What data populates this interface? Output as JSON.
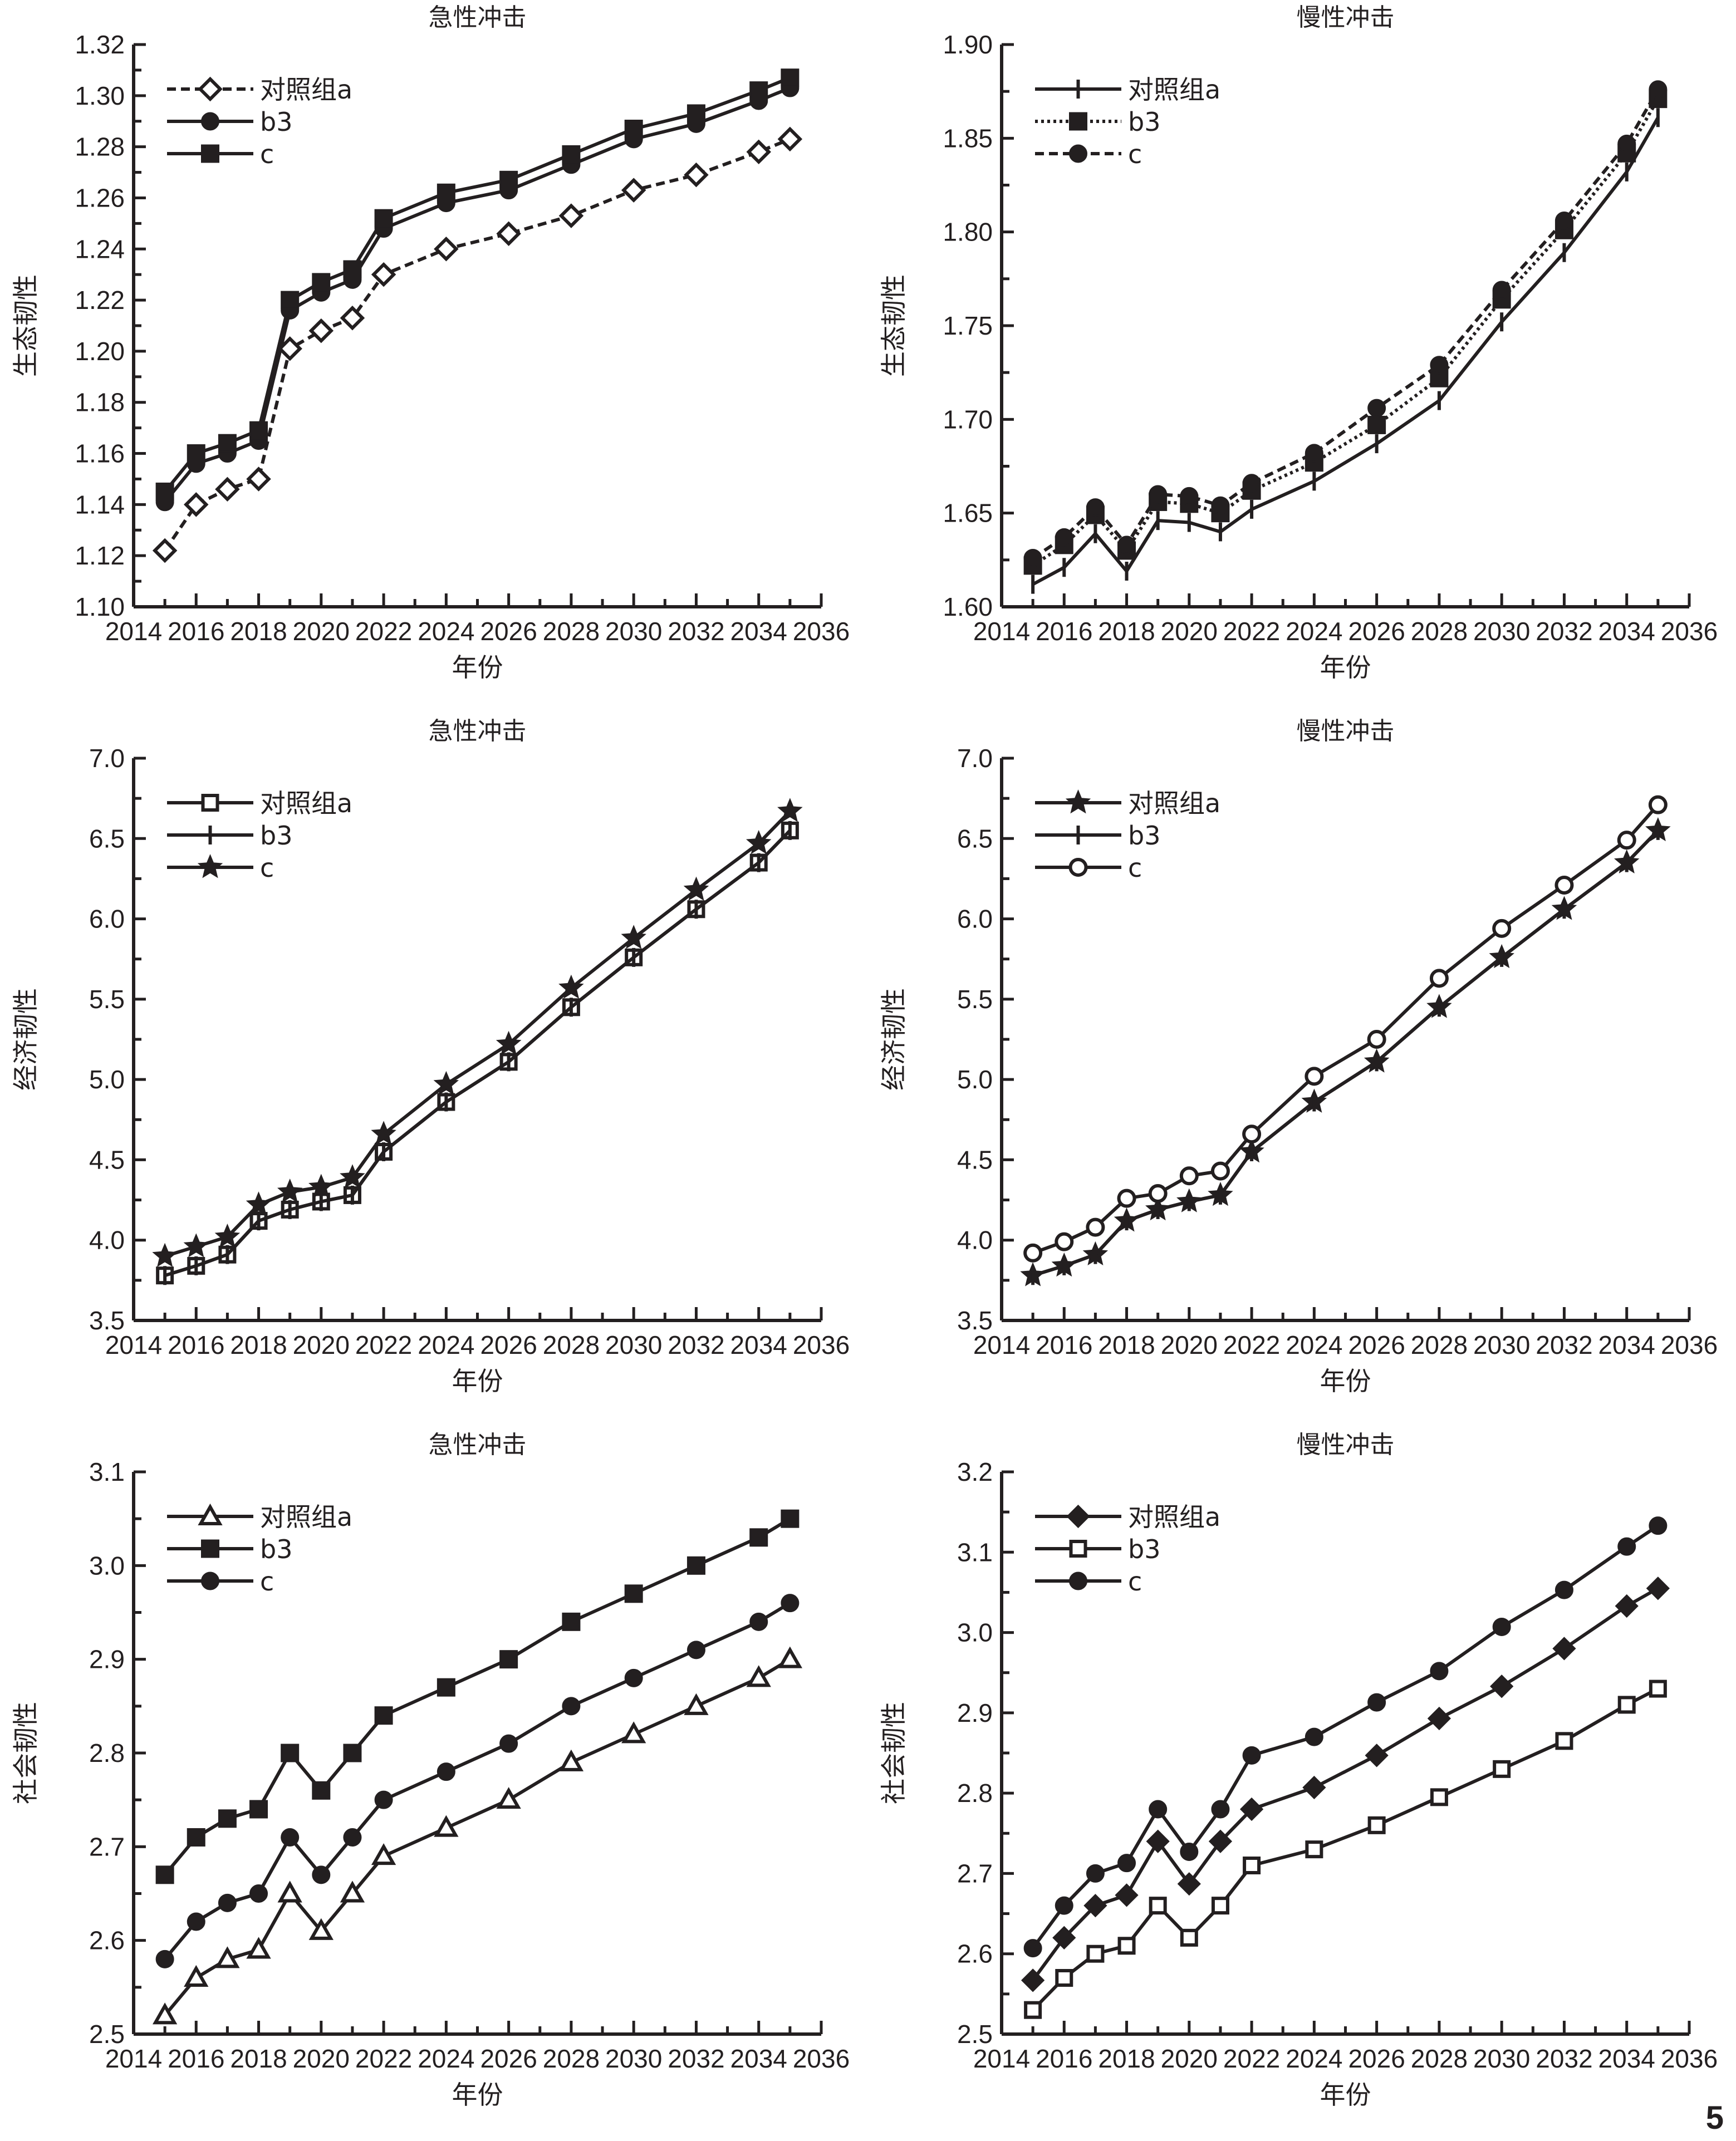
{
  "page_number": "5",
  "chart_data": [
    {
      "id": "eco-acute",
      "type": "line",
      "title": "急性冲击",
      "xlabel": "年份",
      "ylabel": "生态韧性",
      "xlim": [
        2014,
        2036
      ],
      "xticks": [
        2014,
        2016,
        2018,
        2020,
        2022,
        2024,
        2026,
        2028,
        2030,
        2032,
        2034,
        2036
      ],
      "ylim": [
        1.1,
        1.32
      ],
      "yticks": [
        1.1,
        1.12,
        1.14,
        1.16,
        1.18,
        1.2,
        1.22,
        1.24,
        1.26,
        1.28,
        1.3,
        1.32
      ],
      "ytick_decimals": 2,
      "legend_position": "top-left",
      "grid": false,
      "x": [
        2015,
        2016,
        2017,
        2018,
        2019,
        2020,
        2021,
        2022,
        2024,
        2026,
        2028,
        2030,
        2032,
        2034,
        2035
      ],
      "series": [
        {
          "name": "对照组a",
          "marker": "diamond-open",
          "line": "dashed",
          "values": [
            1.122,
            1.14,
            1.146,
            1.15,
            1.201,
            1.208,
            1.213,
            1.23,
            1.24,
            1.246,
            1.253,
            1.263,
            1.269,
            1.278,
            1.283
          ]
        },
        {
          "name": "b3",
          "marker": "circle-filled",
          "line": "solid",
          "values": [
            1.141,
            1.156,
            1.16,
            1.165,
            1.216,
            1.223,
            1.228,
            1.248,
            1.258,
            1.263,
            1.273,
            1.283,
            1.289,
            1.298,
            1.303
          ]
        },
        {
          "name": "c",
          "marker": "square-filled",
          "line": "solid",
          "values": [
            1.145,
            1.16,
            1.164,
            1.169,
            1.22,
            1.227,
            1.232,
            1.252,
            1.262,
            1.267,
            1.277,
            1.287,
            1.293,
            1.302,
            1.307
          ]
        }
      ]
    },
    {
      "id": "eco-chronic",
      "type": "line",
      "title": "慢性冲击",
      "xlabel": "年份",
      "ylabel": "生态韧性",
      "xlim": [
        2014,
        2036
      ],
      "xticks": [
        2014,
        2016,
        2018,
        2020,
        2022,
        2024,
        2026,
        2028,
        2030,
        2032,
        2034,
        2036
      ],
      "ylim": [
        1.6,
        1.9
      ],
      "yticks": [
        1.6,
        1.65,
        1.7,
        1.75,
        1.8,
        1.85,
        1.9
      ],
      "ytick_decimals": 2,
      "legend_position": "top-left",
      "grid": false,
      "x": [
        2015,
        2016,
        2017,
        2018,
        2019,
        2020,
        2021,
        2022,
        2024,
        2026,
        2028,
        2030,
        2032,
        2034,
        2035
      ],
      "series": [
        {
          "name": "对照组a",
          "marker": "plus",
          "line": "solid",
          "values": [
            1.612,
            1.621,
            1.639,
            1.619,
            1.646,
            1.645,
            1.64,
            1.652,
            1.667,
            1.687,
            1.71,
            1.752,
            1.789,
            1.832,
            1.861
          ]
        },
        {
          "name": "b3",
          "marker": "square-filled",
          "line": "dotted",
          "values": [
            1.622,
            1.633,
            1.649,
            1.63,
            1.656,
            1.655,
            1.65,
            1.662,
            1.677,
            1.697,
            1.722,
            1.764,
            1.801,
            1.842,
            1.871
          ]
        },
        {
          "name": "c",
          "marker": "circle-filled",
          "line": "dashed",
          "values": [
            1.626,
            1.637,
            1.653,
            1.633,
            1.66,
            1.659,
            1.654,
            1.666,
            1.682,
            1.706,
            1.729,
            1.769,
            1.806,
            1.847,
            1.876
          ]
        }
      ]
    },
    {
      "id": "econ-acute",
      "type": "line",
      "title": "急性冲击",
      "xlabel": "年份",
      "ylabel": "经济韧性",
      "xlim": [
        2014,
        2036
      ],
      "xticks": [
        2014,
        2016,
        2018,
        2020,
        2022,
        2024,
        2026,
        2028,
        2030,
        2032,
        2034,
        2036
      ],
      "ylim": [
        3.5,
        7.0
      ],
      "yticks": [
        3.5,
        4.0,
        4.5,
        5.0,
        5.5,
        6.0,
        6.5,
        7.0
      ],
      "ytick_decimals": 1,
      "legend_position": "top-left",
      "grid": false,
      "x": [
        2015,
        2016,
        2017,
        2018,
        2019,
        2020,
        2021,
        2022,
        2024,
        2026,
        2028,
        2030,
        2032,
        2034,
        2035
      ],
      "series": [
        {
          "name": "对照组a",
          "marker": "square-open",
          "line": "solid",
          "values": [
            3.78,
            3.84,
            3.91,
            4.12,
            4.19,
            4.24,
            4.28,
            4.55,
            4.86,
            5.11,
            5.45,
            5.76,
            6.06,
            6.35,
            6.55
          ]
        },
        {
          "name": "b3",
          "marker": "plus",
          "line": "solid",
          "values": [
            3.78,
            3.84,
            3.91,
            4.12,
            4.19,
            4.24,
            4.28,
            4.55,
            4.86,
            5.11,
            5.45,
            5.76,
            6.06,
            6.35,
            6.55
          ]
        },
        {
          "name": "c",
          "marker": "star-filled",
          "line": "solid",
          "values": [
            3.9,
            3.96,
            4.02,
            4.22,
            4.3,
            4.33,
            4.39,
            4.66,
            4.97,
            5.22,
            5.57,
            5.88,
            6.18,
            6.47,
            6.67
          ]
        }
      ]
    },
    {
      "id": "econ-chronic",
      "type": "line",
      "title": "慢性冲击",
      "xlabel": "年份",
      "ylabel": "经济韧性",
      "xlim": [
        2014,
        2036
      ],
      "xticks": [
        2014,
        2016,
        2018,
        2020,
        2022,
        2024,
        2026,
        2028,
        2030,
        2032,
        2034,
        2036
      ],
      "ylim": [
        3.5,
        7.0
      ],
      "yticks": [
        3.5,
        4.0,
        4.5,
        5.0,
        5.5,
        6.0,
        6.5,
        7.0
      ],
      "ytick_decimals": 1,
      "legend_position": "top-left",
      "grid": false,
      "x": [
        2015,
        2016,
        2017,
        2018,
        2019,
        2020,
        2021,
        2022,
        2024,
        2026,
        2028,
        2030,
        2032,
        2034,
        2035
      ],
      "series": [
        {
          "name": "对照组a",
          "marker": "star-filled",
          "line": "solid",
          "values": [
            3.78,
            3.84,
            3.91,
            4.12,
            4.19,
            4.24,
            4.28,
            4.55,
            4.86,
            5.11,
            5.45,
            5.76,
            6.06,
            6.35,
            6.55
          ]
        },
        {
          "name": "b3",
          "marker": "plus",
          "line": "solid",
          "values": [
            3.78,
            3.84,
            3.91,
            4.12,
            4.19,
            4.24,
            4.28,
            4.55,
            4.86,
            5.11,
            5.45,
            5.76,
            6.06,
            6.35,
            6.55
          ]
        },
        {
          "name": "c",
          "marker": "circle-open",
          "line": "solid",
          "values": [
            3.92,
            3.99,
            4.08,
            4.26,
            4.29,
            4.4,
            4.43,
            4.66,
            5.02,
            5.25,
            5.63,
            5.94,
            6.21,
            6.49,
            6.71
          ]
        }
      ]
    },
    {
      "id": "social-acute",
      "type": "line",
      "title": "急性冲击",
      "xlabel": "年份",
      "ylabel": "社会韧性",
      "xlim": [
        2014,
        2036
      ],
      "xticks": [
        2014,
        2016,
        2018,
        2020,
        2022,
        2024,
        2026,
        2028,
        2030,
        2032,
        2034,
        2036
      ],
      "ylim": [
        2.5,
        3.1
      ],
      "yticks": [
        2.5,
        2.6,
        2.7,
        2.8,
        2.9,
        3.0,
        3.1
      ],
      "ytick_decimals": 1,
      "legend_position": "top-left",
      "grid": false,
      "x": [
        2015,
        2016,
        2017,
        2018,
        2019,
        2020,
        2021,
        2022,
        2024,
        2026,
        2028,
        2030,
        2032,
        2034,
        2035
      ],
      "series": [
        {
          "name": "对照组a",
          "marker": "triangle-open",
          "line": "solid",
          "values": [
            2.52,
            2.56,
            2.58,
            2.59,
            2.65,
            2.61,
            2.65,
            2.69,
            2.72,
            2.75,
            2.79,
            2.82,
            2.85,
            2.88,
            2.9
          ]
        },
        {
          "name": "b3",
          "marker": "square-filled",
          "line": "solid",
          "values": [
            2.67,
            2.71,
            2.73,
            2.74,
            2.8,
            2.76,
            2.8,
            2.84,
            2.87,
            2.9,
            2.94,
            2.97,
            3.0,
            3.03,
            3.05
          ]
        },
        {
          "name": "c",
          "marker": "circle-filled",
          "line": "solid",
          "values": [
            2.58,
            2.62,
            2.64,
            2.65,
            2.71,
            2.67,
            2.71,
            2.75,
            2.78,
            2.81,
            2.85,
            2.88,
            2.91,
            2.94,
            2.96
          ]
        }
      ]
    },
    {
      "id": "social-chronic",
      "type": "line",
      "title": "慢性冲击",
      "xlabel": "年份",
      "ylabel": "社会韧性",
      "xlim": [
        2014,
        2036
      ],
      "xticks": [
        2014,
        2016,
        2018,
        2020,
        2022,
        2024,
        2026,
        2028,
        2030,
        2032,
        2034,
        2036
      ],
      "ylim": [
        2.5,
        3.2
      ],
      "yticks": [
        2.5,
        2.6,
        2.7,
        2.8,
        2.9,
        3.0,
        3.1,
        3.2
      ],
      "ytick_decimals": 1,
      "legend_position": "top-left",
      "grid": false,
      "x": [
        2015,
        2016,
        2017,
        2018,
        2019,
        2020,
        2021,
        2022,
        2024,
        2026,
        2028,
        2030,
        2032,
        2034,
        2035
      ],
      "series": [
        {
          "name": "对照组a",
          "marker": "diamond-filled",
          "line": "solid",
          "values": [
            2.567,
            2.62,
            2.66,
            2.673,
            2.74,
            2.687,
            2.74,
            2.78,
            2.807,
            2.847,
            2.893,
            2.933,
            2.98,
            3.033,
            3.055
          ]
        },
        {
          "name": "b3",
          "marker": "square-open",
          "line": "solid",
          "values": [
            2.53,
            2.57,
            2.6,
            2.61,
            2.66,
            2.62,
            2.66,
            2.71,
            2.73,
            2.76,
            2.795,
            2.83,
            2.865,
            2.91,
            2.93
          ]
        },
        {
          "name": "c",
          "marker": "circle-filled",
          "line": "solid",
          "values": [
            2.607,
            2.66,
            2.7,
            2.713,
            2.78,
            2.727,
            2.78,
            2.847,
            2.87,
            2.913,
            2.952,
            3.007,
            3.053,
            3.107,
            3.133
          ]
        }
      ]
    }
  ]
}
